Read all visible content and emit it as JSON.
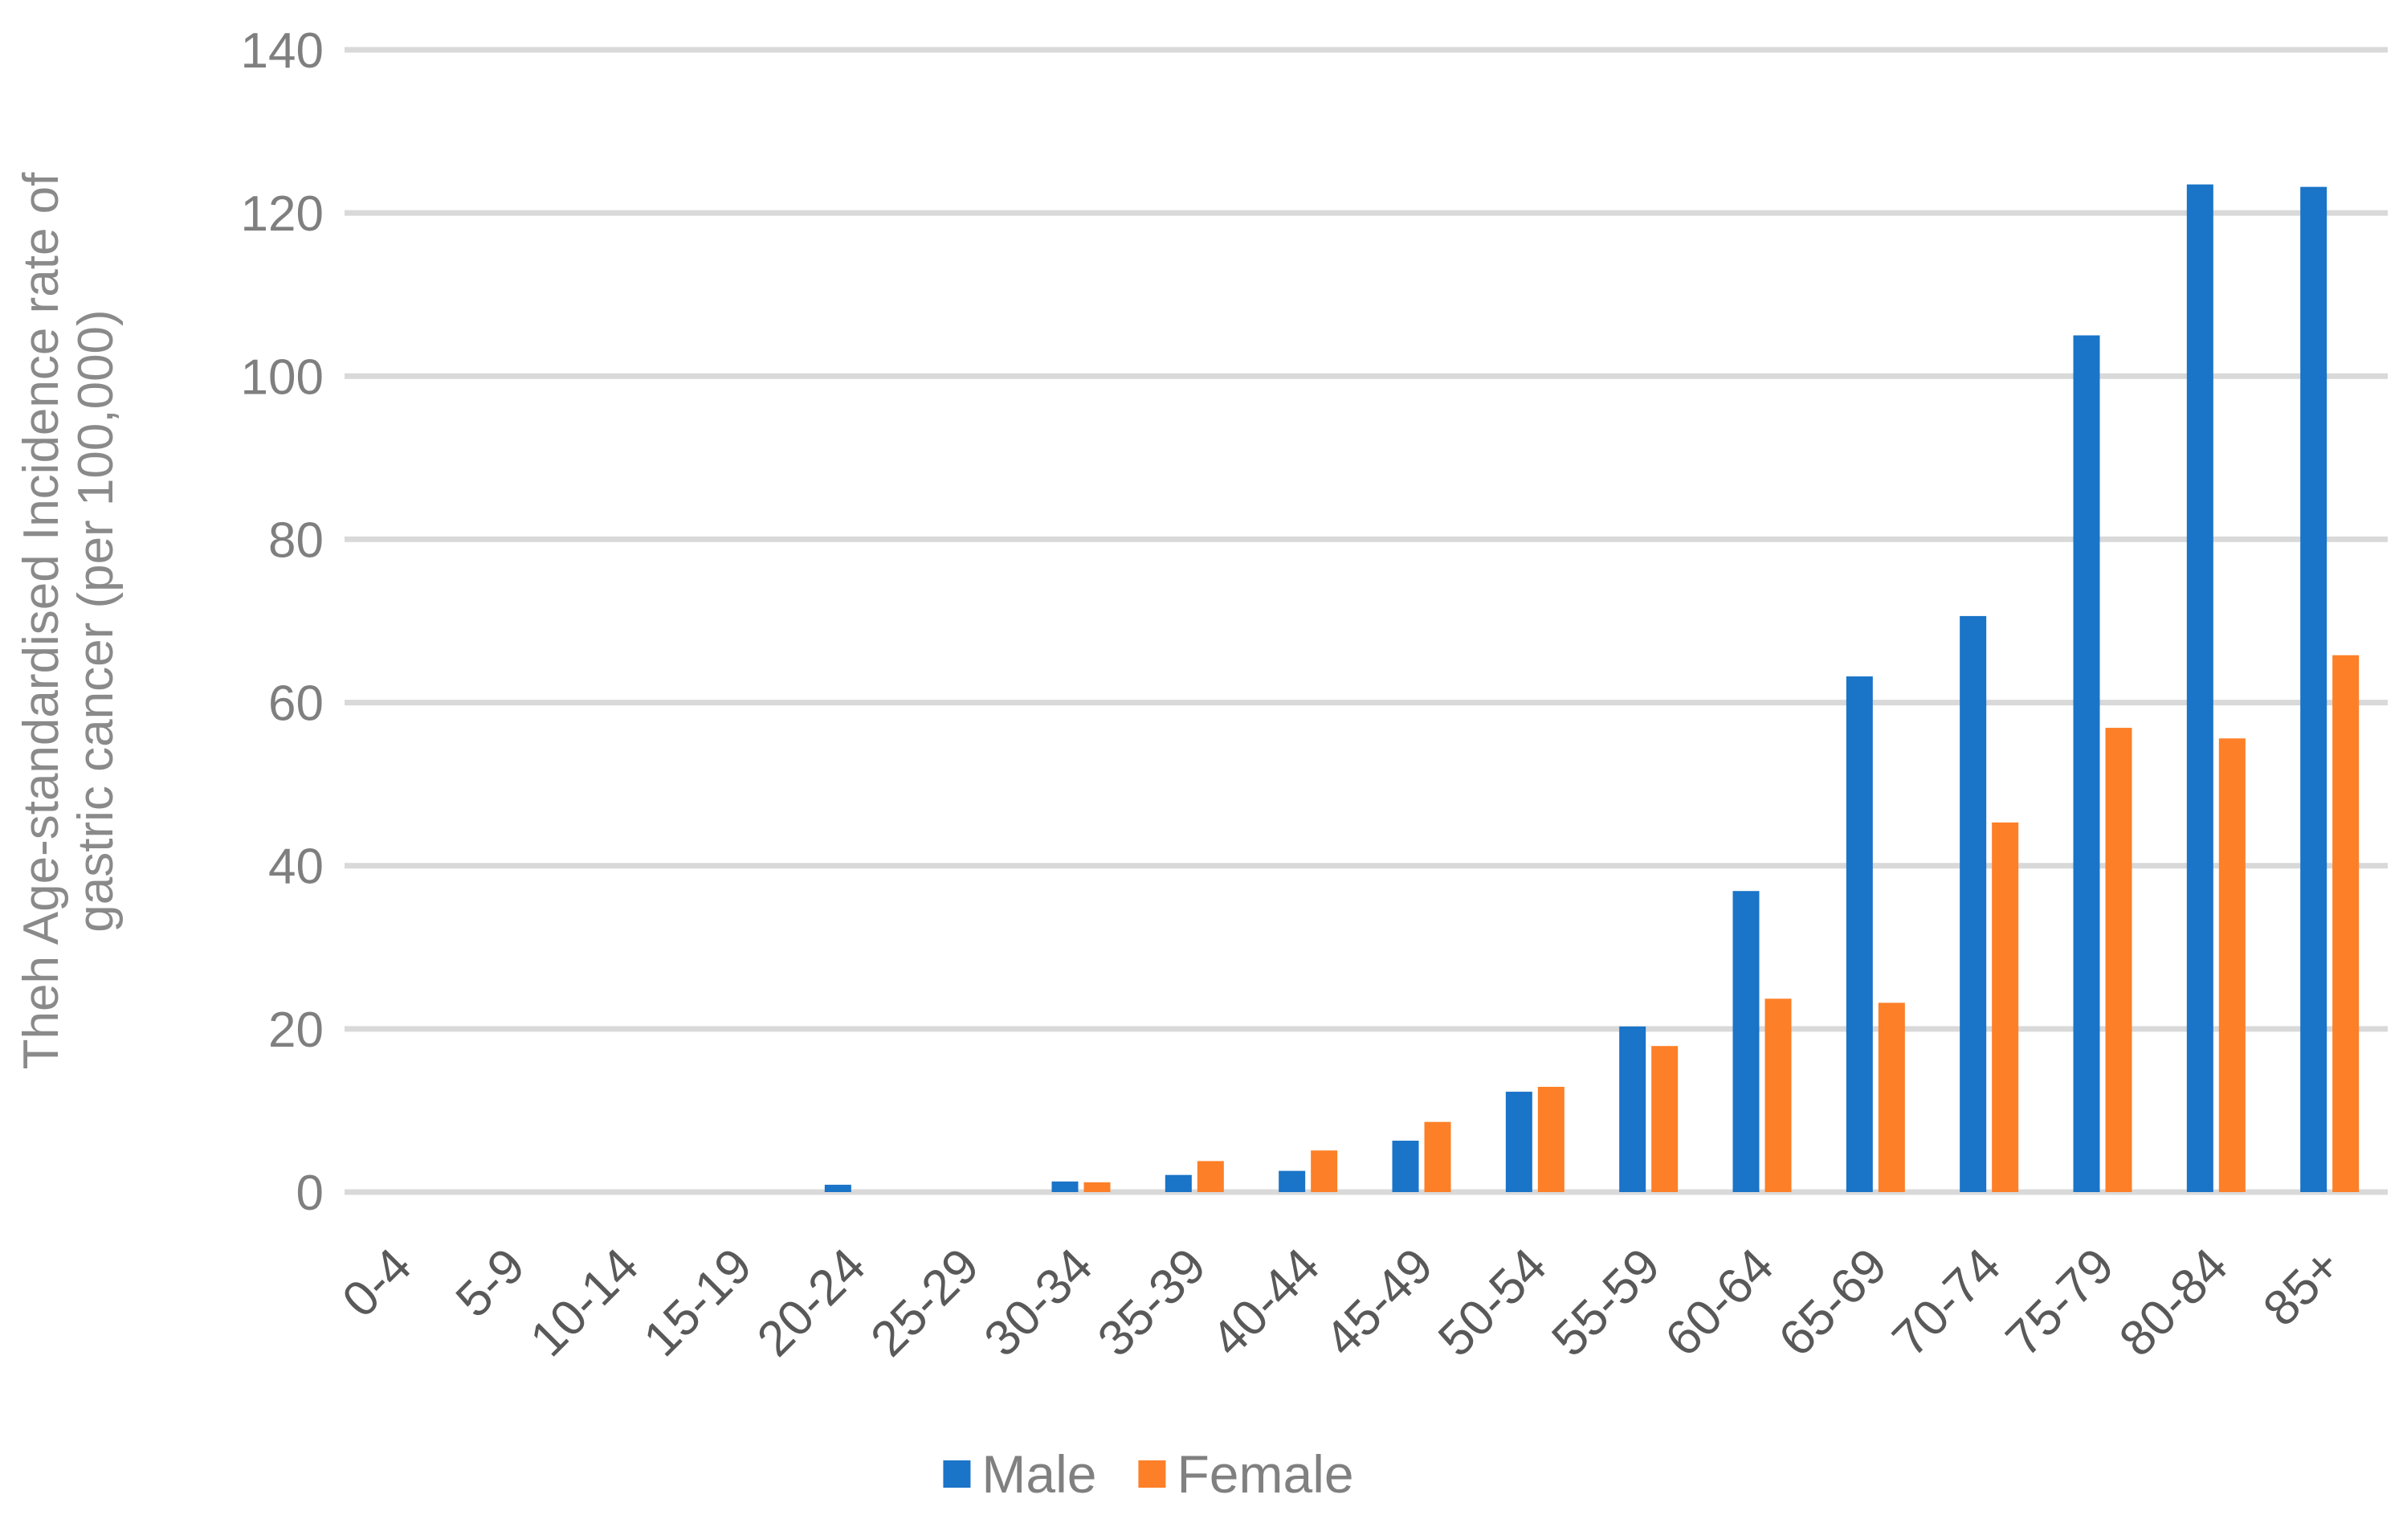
{
  "chart_data": {
    "type": "bar",
    "title": "",
    "ylabel_lines": [
      "Theh Age-standardised Incidence rate of",
      "gastric cancer (per 100,000)"
    ],
    "categories": [
      "0-4",
      "5-9",
      "10-14",
      "15-19",
      "20-24",
      "25-29",
      "30-34",
      "35-39",
      "40-44",
      "45-49",
      "50-54",
      "55-59",
      "60-64",
      "65-69",
      "70-74",
      "75-79",
      "80-84",
      "85+"
    ],
    "series": [
      {
        "name": "Male",
        "color": "#1A74C8",
        "values": [
          0,
          0,
          0,
          0,
          0.9,
          0,
          1.3,
          2.1,
          2.6,
          6.3,
          12.3,
          20.3,
          36.9,
          63.2,
          70.6,
          105.0,
          123.5,
          123.2
        ]
      },
      {
        "name": "Female",
        "color": "#FD7F27",
        "values": [
          0,
          0,
          0,
          0,
          0,
          0,
          1.2,
          3.8,
          5.1,
          8.6,
          12.9,
          17.9,
          23.7,
          23.2,
          45.3,
          56.9,
          55.6,
          65.8
        ]
      }
    ],
    "ylim": [
      0,
      140
    ],
    "ytick_step": 20,
    "ytick_labels": [
      "0",
      "20",
      "40",
      "60",
      "80",
      "100",
      "120",
      "140"
    ],
    "grid": true,
    "legend_position": "bottom",
    "colors": {
      "gridline": "#D9D9D9",
      "ytick_text": "#7F7F7F",
      "xtick_text": "#595959",
      "ylabel_text": "#8A8A8A",
      "legend_text": "#808080",
      "background": "#FFFFFF"
    }
  }
}
